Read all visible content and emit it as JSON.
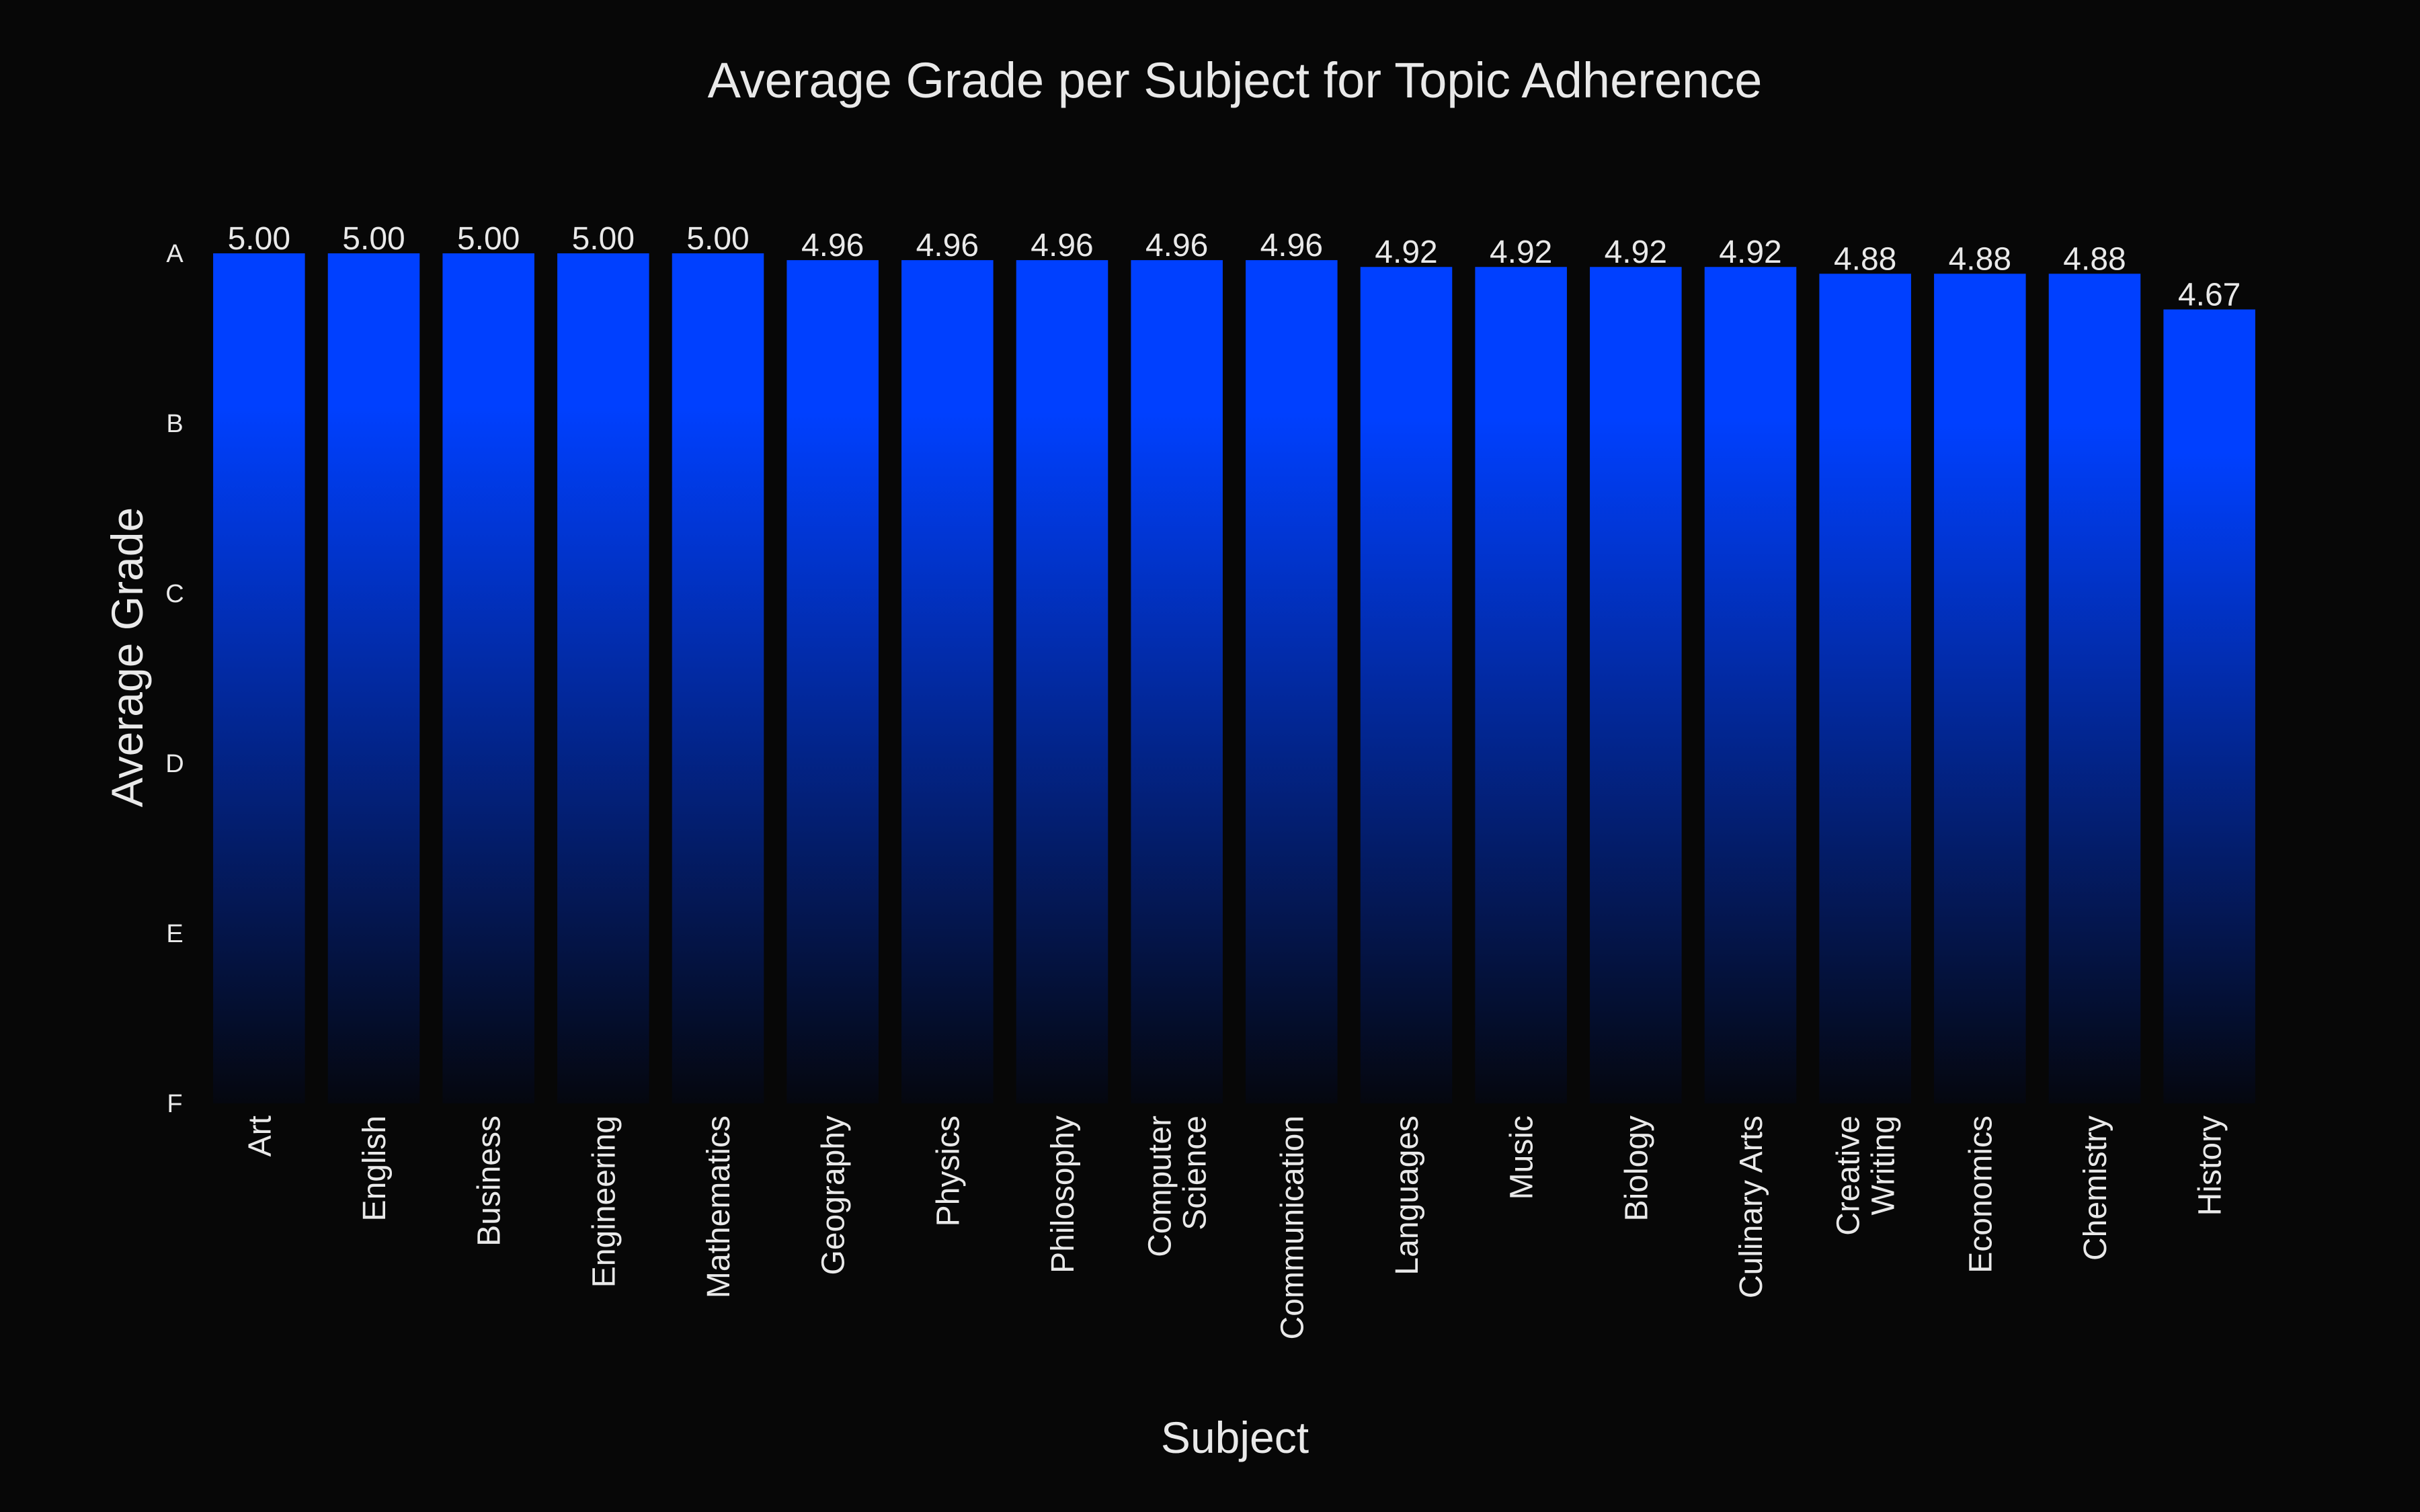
{
  "chart_data": {
    "type": "bar",
    "title": "Average Grade per Subject for Topic Adherence",
    "xlabel": "Subject",
    "ylabel": "Average Grade",
    "ylim": [
      0,
      5
    ],
    "ytick_values": [
      0,
      1,
      2,
      3,
      4,
      5
    ],
    "ytick_labels": [
      "F",
      "E",
      "D",
      "C",
      "B",
      "A"
    ],
    "grid": false,
    "categories": [
      "Art",
      "English",
      "Business",
      "Engineering",
      "Mathematics",
      "Geography",
      "Physics",
      "Philosophy",
      "Computer\nScience",
      "Communication",
      "Languages",
      "Music",
      "Biology",
      "Culinary Arts",
      "Creative\nWriting",
      "Economics",
      "Chemistry",
      "History"
    ],
    "values": [
      5.0,
      5.0,
      5.0,
      5.0,
      5.0,
      4.96,
      4.96,
      4.96,
      4.96,
      4.96,
      4.92,
      4.92,
      4.92,
      4.92,
      4.88,
      4.88,
      4.88,
      4.67
    ],
    "value_labels": [
      "5.00",
      "5.00",
      "5.00",
      "5.00",
      "5.00",
      "4.96",
      "4.96",
      "4.96",
      "4.96",
      "4.96",
      "4.92",
      "4.92",
      "4.92",
      "4.92",
      "4.88",
      "4.88",
      "4.88",
      "4.67"
    ],
    "colors": {
      "background": "#070707",
      "bar_top": "#0040ff",
      "bar_bottom": "#05070f",
      "text": "#e9e9e9"
    }
  }
}
